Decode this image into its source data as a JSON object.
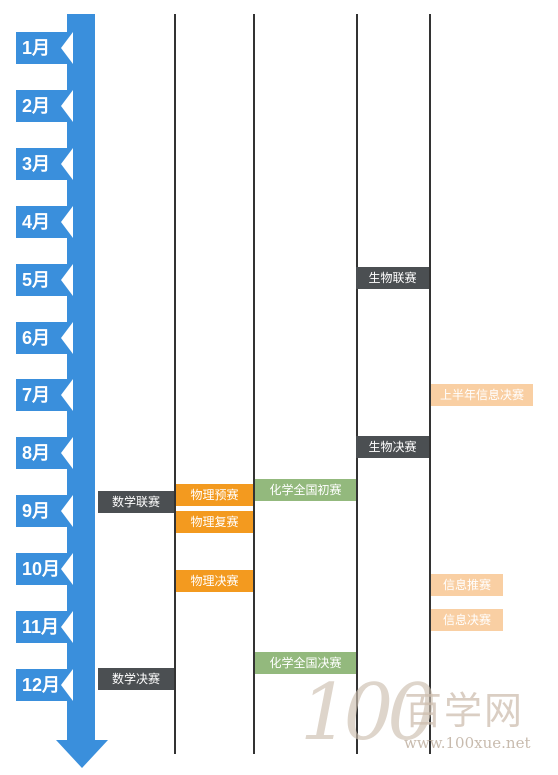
{
  "months": [
    "1月",
    "2月",
    "3月",
    "4月",
    "5月",
    "6月",
    "7月",
    "8月",
    "9月",
    "10月",
    "11月",
    "12月"
  ],
  "events": {
    "math_league": "数学联赛",
    "math_final": "数学决赛",
    "physics_pre": "物理预赛",
    "physics_re": "物理复赛",
    "physics_final": "物理决赛",
    "chem_initial": "化学全国初赛",
    "chem_final": "化学全国决赛",
    "bio_league": "生物联赛",
    "bio_final": "生物决赛",
    "info_half_final": "上半年信息决赛",
    "info_select": "信息推赛",
    "info_final": "信息决赛"
  },
  "watermark": {
    "logo_number": "100",
    "cn_text": "百学网",
    "url": "www.100xue.net"
  },
  "colors": {
    "timeline_blue": "#3a8fdc",
    "dark_badge": "#4b4f52",
    "orange_badge": "#f39a1f",
    "green_badge": "#93b97d",
    "peach_badge": "#f9cfa3"
  }
}
